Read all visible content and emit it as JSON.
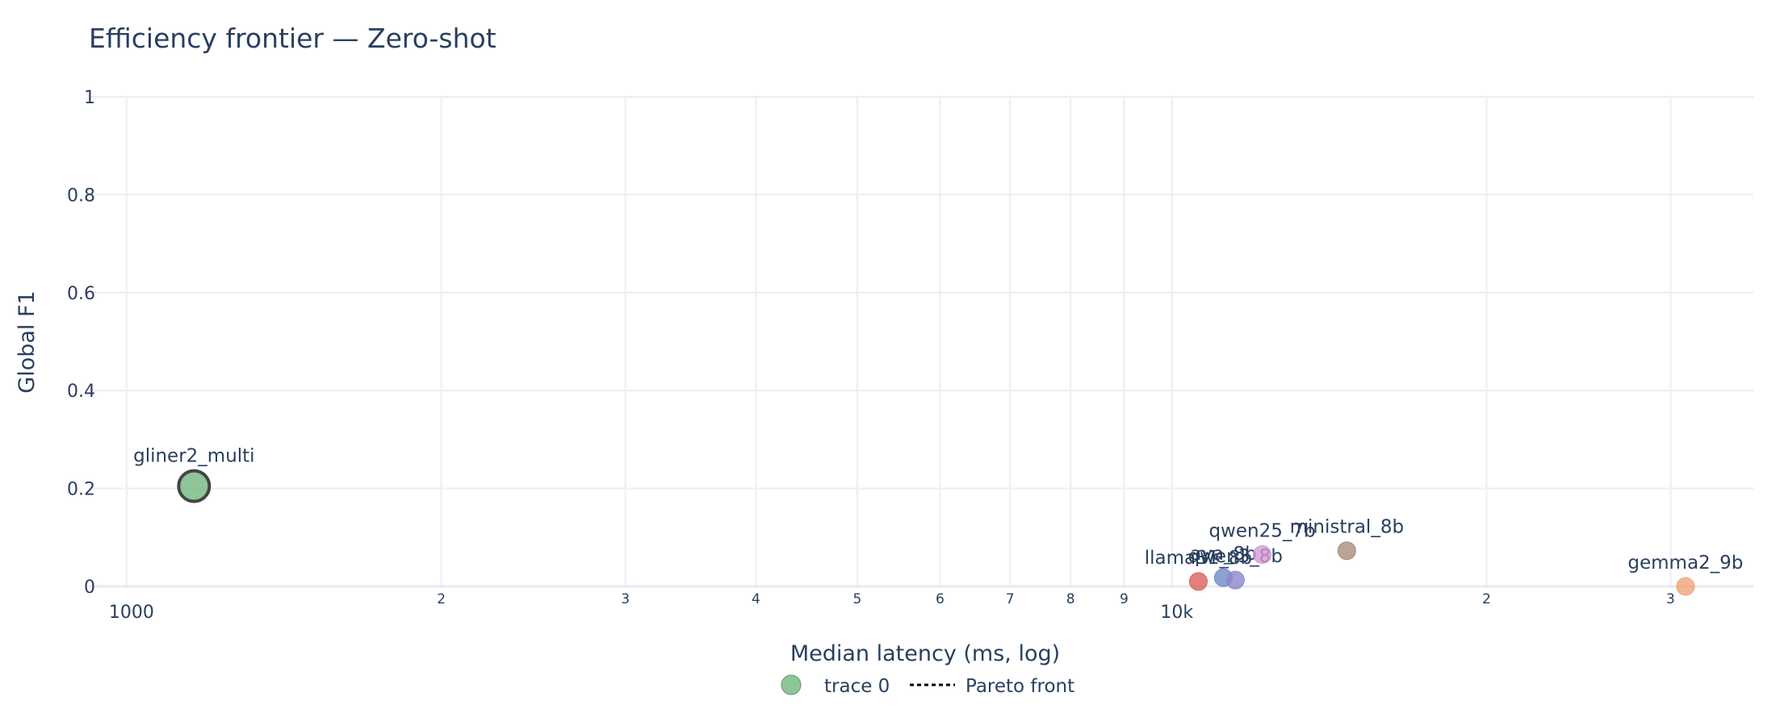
{
  "chart_data": {
    "type": "scatter",
    "title": "Efficiency frontier — Zero-shot",
    "xlabel": "Median latency (ms, log)",
    "ylabel": "Global F1",
    "x_scale": "log",
    "xlim": [
      920,
      36000
    ],
    "ylim": [
      0,
      1
    ],
    "grid": true,
    "legend_position": "bottom-center",
    "x_ticks_major": [
      {
        "value": 1000,
        "label": "1000"
      },
      {
        "value": 10000,
        "label": "10k"
      }
    ],
    "x_ticks_minor": [
      {
        "value": 2000,
        "label": "2"
      },
      {
        "value": 3000,
        "label": "3"
      },
      {
        "value": 4000,
        "label": "4"
      },
      {
        "value": 5000,
        "label": "5"
      },
      {
        "value": 6000,
        "label": "6"
      },
      {
        "value": 7000,
        "label": "7"
      },
      {
        "value": 8000,
        "label": "8"
      },
      {
        "value": 9000,
        "label": "9"
      },
      {
        "value": 20000,
        "label": "2"
      },
      {
        "value": 30000,
        "label": "3"
      }
    ],
    "y_ticks": [
      {
        "value": 0,
        "label": "0"
      },
      {
        "value": 0.2,
        "label": "0.2"
      },
      {
        "value": 0.4,
        "label": "0.4"
      },
      {
        "value": 0.6,
        "label": "0.6"
      },
      {
        "value": 0.8,
        "label": "0.8"
      },
      {
        "value": 1,
        "label": "1"
      }
    ],
    "points": [
      {
        "label": "gliner2_multi",
        "x": 1160,
        "y": 0.205,
        "color": "#72b77f",
        "pareto": true
      },
      {
        "label": "llama31_8b",
        "x": 10600,
        "y": 0.01,
        "color": "#d9605d",
        "pareto": false
      },
      {
        "label": "aya_8b",
        "x": 11200,
        "y": 0.018,
        "color": "#6f8ac7",
        "pareto": false
      },
      {
        "label": "qwen3_8b",
        "x": 11500,
        "y": 0.013,
        "color": "#8c87cc",
        "pareto": false
      },
      {
        "label": "qwen25_7b",
        "x": 12200,
        "y": 0.065,
        "color": "#d59ad4",
        "pareto": false
      },
      {
        "label": "ministral_8b",
        "x": 14700,
        "y": 0.073,
        "color": "#a88d7d",
        "pareto": false
      },
      {
        "label": "gemma2_9b",
        "x": 31000,
        "y": 0.0,
        "color": "#f0a47a",
        "pareto": false
      }
    ],
    "legend": [
      {
        "label": "trace 0",
        "color": "#72b77f",
        "kind": "marker"
      },
      {
        "label": "Pareto front",
        "color": "#000000",
        "kind": "dotted-line"
      }
    ]
  }
}
